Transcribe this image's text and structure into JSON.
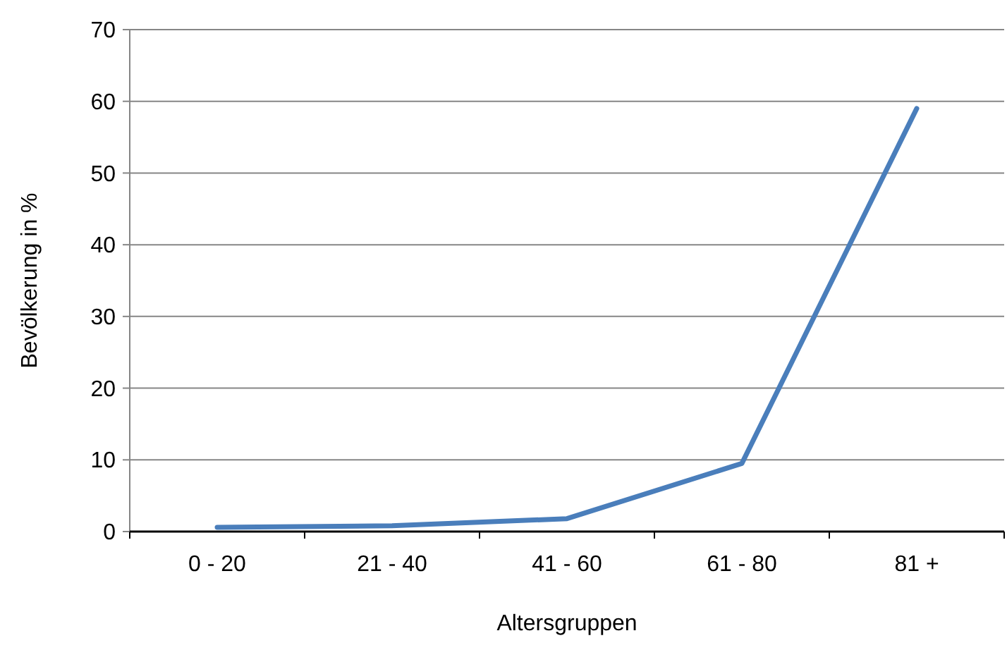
{
  "chart_data": {
    "type": "line",
    "xlabel": "Altersgruppen",
    "ylabel": "Bevölkerung in %",
    "categories": [
      "0 - 20",
      "21 - 40",
      "41 - 60",
      "61 - 80",
      "81 +"
    ],
    "series": [
      {
        "color": "#4a7ebb",
        "values": [
          0.6,
          0.8,
          1.8,
          9.5,
          59
        ]
      }
    ],
    "ylim": [
      0,
      70
    ],
    "yticks": [
      0,
      10,
      20,
      30,
      40,
      50,
      60,
      70
    ],
    "grid": "y",
    "marker": "none",
    "line_style": "solid"
  }
}
